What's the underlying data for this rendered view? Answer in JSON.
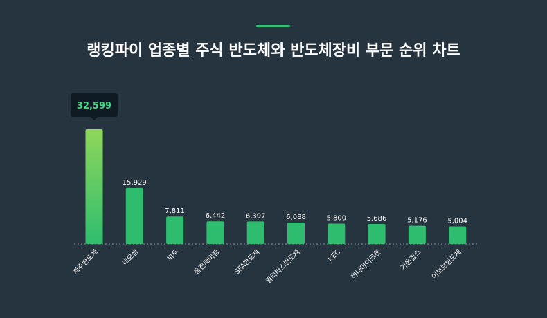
{
  "title": "랭킹파이 업종별 주식 반도체와 반도체장비 부문 순위 차트",
  "colors": {
    "background": "#263440",
    "accent": "#2ebd6e",
    "bar": "#2ebd6e",
    "bar_top_highlight": "#8fd65a",
    "tooltip_bg": "#0f1a22",
    "tooltip_text": "#3ddc84",
    "baseline": "#8a949c"
  },
  "chart_data": {
    "type": "bar",
    "categories": [
      "제주반도체",
      "네오셈",
      "피두",
      "동진쎄미켐",
      "SFA반도체",
      "퀄리타스반도체",
      "KEC",
      "하나마이크론",
      "기온칩스",
      "어보브반도체"
    ],
    "values": [
      32599,
      15929,
      7811,
      6442,
      6397,
      6088,
      5800,
      5686,
      5176,
      5004
    ],
    "value_labels": [
      "32,599",
      "15,929",
      "7,811",
      "6,442",
      "6,397",
      "6,088",
      "5,800",
      "5,686",
      "5,176",
      "5,004"
    ],
    "highlight_index": 0,
    "ylim": [
      0,
      32599
    ],
    "grid": false,
    "legend": "none"
  }
}
